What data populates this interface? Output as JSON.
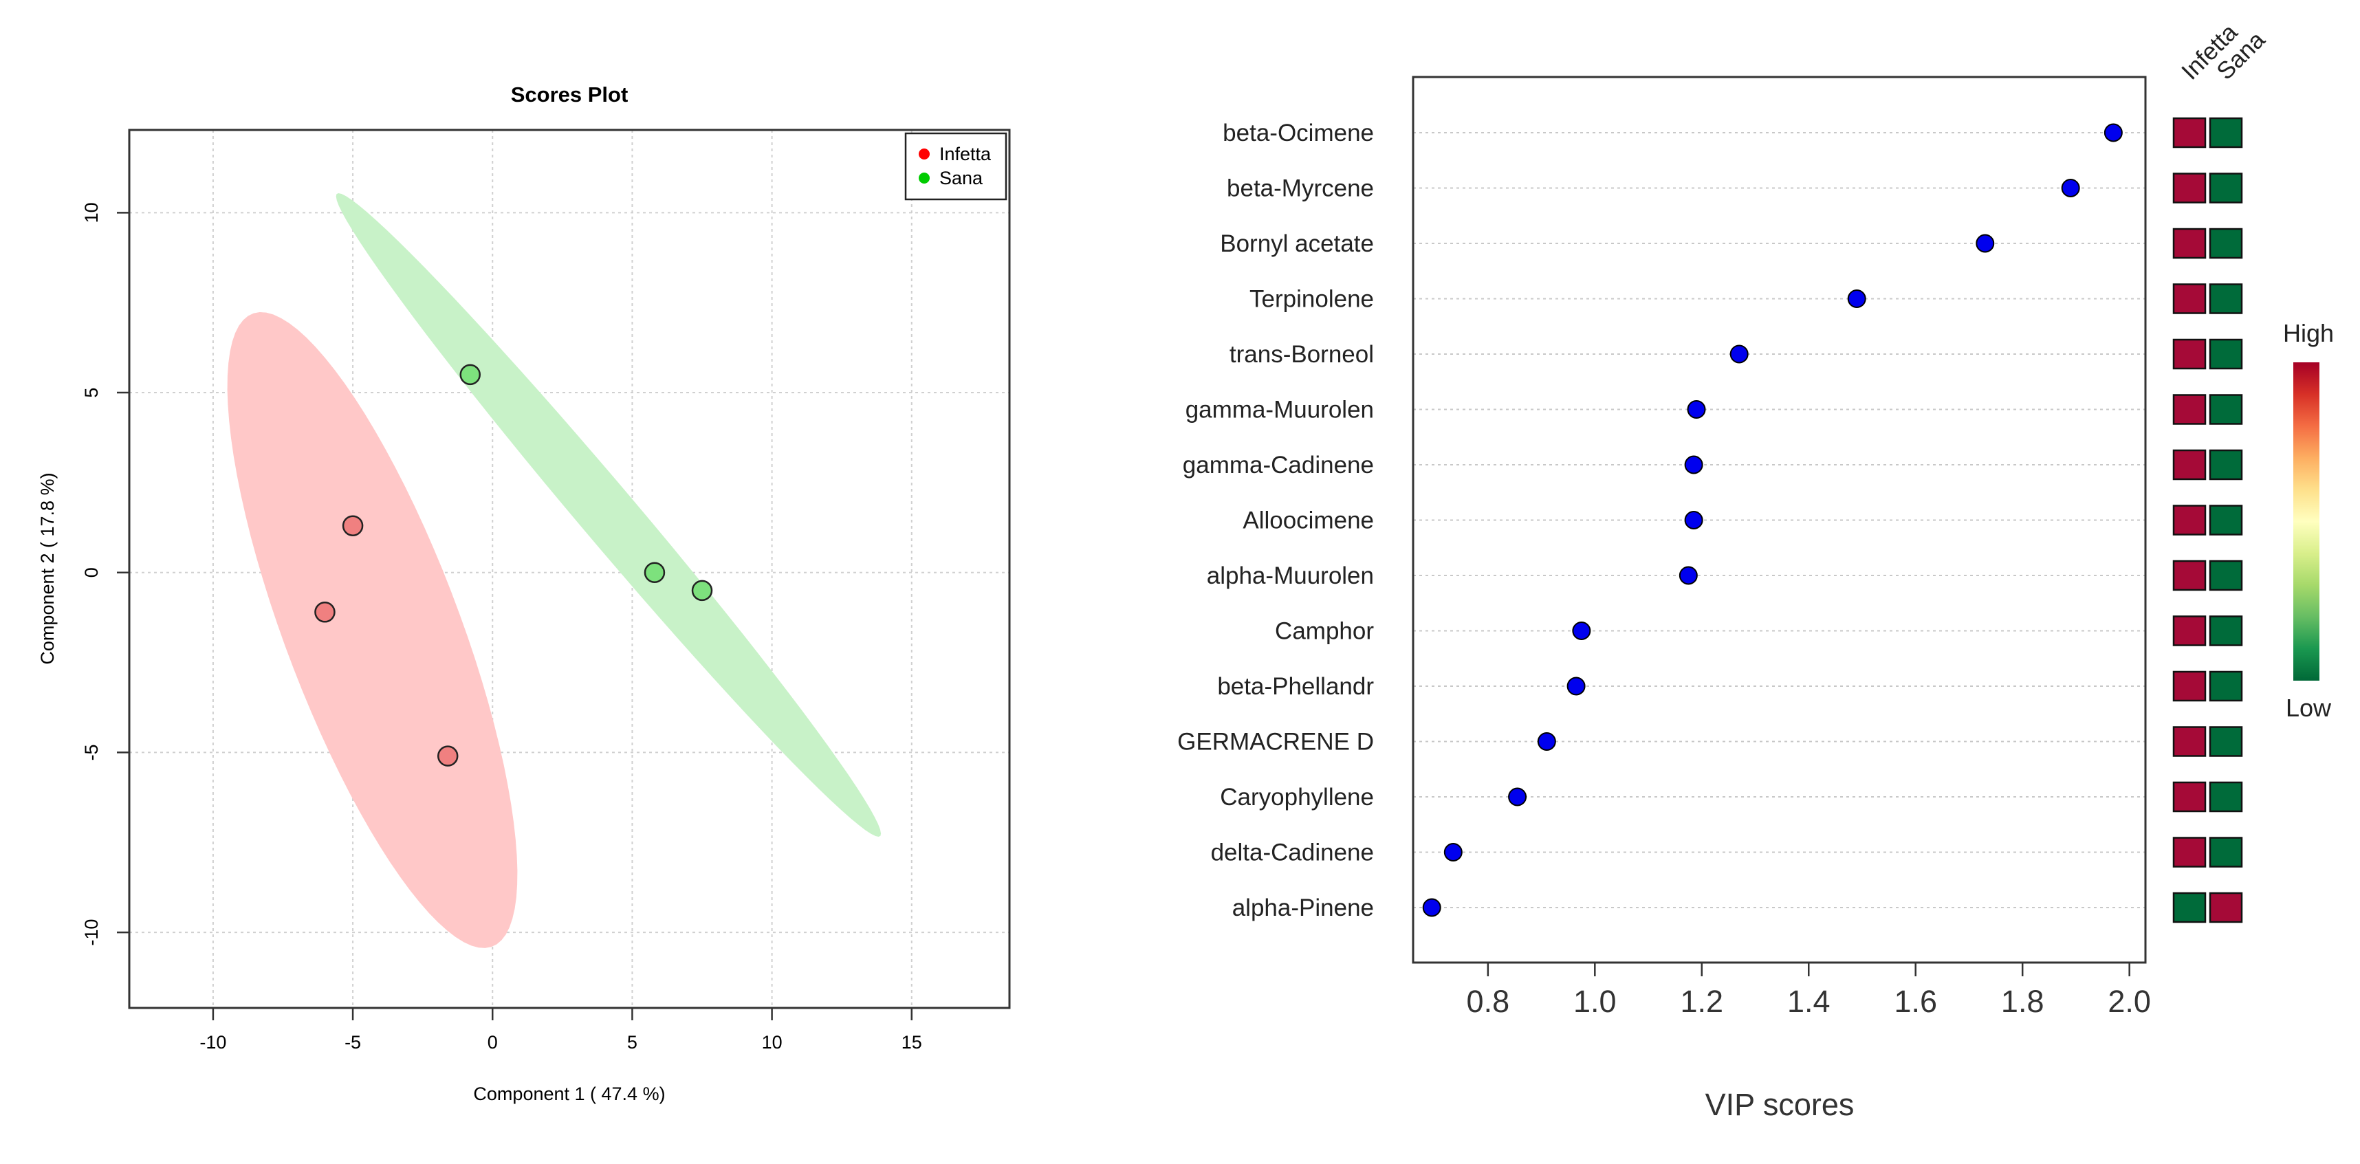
{
  "chart_data": [
    {
      "type": "scatter",
      "title": "Scores Plot",
      "xlabel": "Component 1 ( 47.4 %)",
      "ylabel": "Component 2 ( 17.8 %)",
      "xlim": [
        -13,
        18.5
      ],
      "ylim": [
        -12.1,
        12.3
      ],
      "x_ticks": [
        -10,
        -5,
        0,
        5,
        10,
        15
      ],
      "y_ticks": [
        -10,
        -5,
        0,
        5,
        10
      ],
      "grid": true,
      "legend_position": "top-right",
      "series": [
        {
          "name": "Infetta",
          "color": "#ff0000",
          "fill": "#f08080",
          "ellipse_fill": "#ffc8c8",
          "points": [
            {
              "x": -5.0,
              "y": 1.3
            },
            {
              "x": -6.0,
              "y": -1.1
            },
            {
              "x": -1.6,
              "y": -5.1
            }
          ],
          "ellipse": {
            "cx": -4.3,
            "cy": -1.6,
            "rx": 9.8,
            "ry": 3.0,
            "angle_deg": -63
          }
        },
        {
          "name": "Sana",
          "color": "#00cc00",
          "fill": "#7de17d",
          "ellipse_fill": "#c8f2c8",
          "points": [
            {
              "x": -0.8,
              "y": 5.5
            },
            {
              "x": 5.8,
              "y": 0.0
            },
            {
              "x": 7.5,
              "y": -0.5
            }
          ],
          "ellipse": {
            "cx": 4.15,
            "cy": 1.6,
            "rx": 13.2,
            "ry": 0.9,
            "angle_deg": -42.5
          }
        }
      ]
    },
    {
      "type": "dot",
      "xlabel": "VIP scores",
      "xlim": [
        0.66,
        2.03
      ],
      "x_ticks": [
        "0.8",
        "1.0",
        "1.2",
        "1.4",
        "1.6",
        "1.8",
        "2.0"
      ],
      "categories": [
        "beta-Ocimene",
        "beta-Myrcene",
        "Bornyl acetate",
        "Terpinolene",
        "trans-Borneol",
        "gamma-Muurolen",
        "gamma-Cadinene",
        "Alloocimene",
        "alpha-Muurolen",
        "Camphor",
        "beta-Phellandr",
        "GERMACRENE D",
        "Caryophyllene",
        "delta-Cadinene",
        "alpha-Pinene"
      ],
      "values": [
        1.97,
        1.89,
        1.73,
        1.49,
        1.27,
        1.19,
        1.185,
        1.185,
        1.175,
        0.975,
        0.965,
        0.91,
        0.855,
        0.735,
        0.695
      ],
      "dot_color": "#0000ee",
      "heatmap": {
        "columns": [
          "Infetta",
          "Sana"
        ],
        "cells": [
          [
            "high",
            "low"
          ],
          [
            "high",
            "low"
          ],
          [
            "high",
            "low"
          ],
          [
            "high",
            "low"
          ],
          [
            "high",
            "low"
          ],
          [
            "high",
            "low"
          ],
          [
            "high",
            "low"
          ],
          [
            "high",
            "low"
          ],
          [
            "high",
            "low"
          ],
          [
            "high",
            "low"
          ],
          [
            "high",
            "low"
          ],
          [
            "high",
            "low"
          ],
          [
            "high",
            "low"
          ],
          [
            "high",
            "low"
          ],
          [
            "low",
            "high"
          ]
        ],
        "high_color": "#a50a37",
        "low_color": "#006b3a"
      },
      "color_key": {
        "high_label": "High",
        "low_label": "Low",
        "gradient": [
          "#a50026",
          "#d73027",
          "#f46d43",
          "#fdae61",
          "#fee08b",
          "#ffffbf",
          "#d9ef8b",
          "#a6d96a",
          "#66bd63",
          "#1a9850",
          "#006837"
        ]
      }
    }
  ]
}
